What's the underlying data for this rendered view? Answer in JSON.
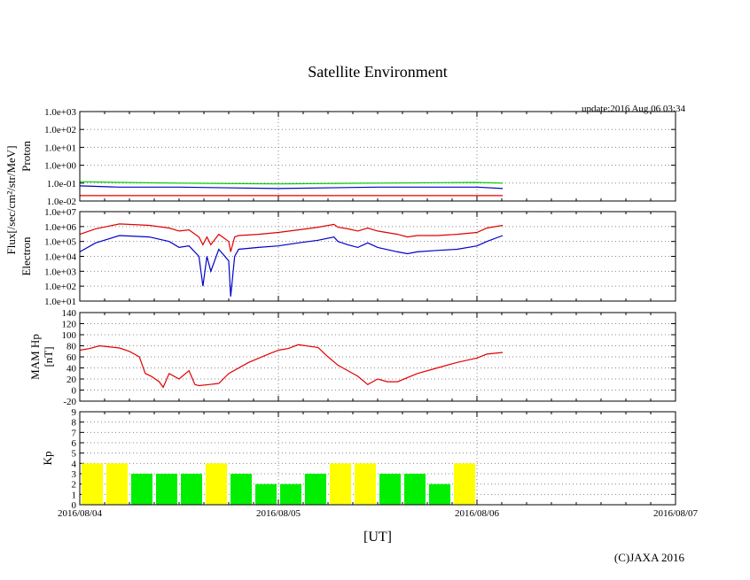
{
  "title": "Satellite Environment",
  "update": "update:2016 Aug 06 03:34",
  "copyright": "(C)JAXA 2016",
  "xlabel": "[UT]",
  "ylabel_flux": "Flux[/sec/cm²/str/MeV]",
  "x_ticks": [
    "2016/08/04",
    "2016/08/05",
    "2016/08/06",
    "2016/08/07"
  ],
  "colors": {
    "red": "#e00000",
    "blue": "#0000cc",
    "green": "#00cc00",
    "yellow": "#ffff00",
    "kp_green": "#00ee00"
  },
  "chart_data": [
    {
      "type": "line",
      "name": "proton",
      "ylabel": "Proton",
      "yscale": "log",
      "ylim": [
        0.01,
        1000
      ],
      "y_ticks": [
        "1.0e-02",
        "1.0e-01",
        "1.0e+00",
        "1.0e+01",
        "1.0e+02",
        "1.0e+03"
      ],
      "xlim_days": [
        0,
        3
      ],
      "series": [
        {
          "name": "green",
          "color": "#00cc00",
          "x": [
            0,
            0.2,
            0.5,
            1.0,
            1.5,
            2.0,
            2.13
          ],
          "values": [
            0.12,
            0.11,
            0.1,
            0.09,
            0.1,
            0.11,
            0.1
          ]
        },
        {
          "name": "blue",
          "color": "#0000cc",
          "x": [
            0,
            0.2,
            0.5,
            1.0,
            1.5,
            2.0,
            2.13
          ],
          "values": [
            0.07,
            0.06,
            0.06,
            0.05,
            0.06,
            0.06,
            0.05
          ]
        },
        {
          "name": "red",
          "color": "#e00000",
          "x": [
            0,
            0.5,
            1.0,
            1.5,
            2.0,
            2.13
          ],
          "values": [
            0.02,
            0.02,
            0.02,
            0.02,
            0.02,
            0.02
          ]
        }
      ]
    },
    {
      "type": "line",
      "name": "electron",
      "ylabel": "Electron",
      "yscale": "log",
      "ylim": [
        10,
        10000000
      ],
      "y_ticks": [
        "1.0e+01",
        "1.0e+02",
        "1.0e+03",
        "1.0e+04",
        "1.0e+05",
        "1.0e+06",
        "1.0e+07"
      ],
      "xlim_days": [
        0,
        3
      ],
      "series": [
        {
          "name": "red",
          "color": "#e00000",
          "x": [
            0,
            0.08,
            0.2,
            0.35,
            0.45,
            0.5,
            0.55,
            0.6,
            0.62,
            0.64,
            0.66,
            0.7,
            0.75,
            0.76,
            0.78,
            0.8,
            0.9,
            1.0,
            1.1,
            1.2,
            1.28,
            1.3,
            1.35,
            1.4,
            1.45,
            1.5,
            1.6,
            1.65,
            1.7,
            1.8,
            1.9,
            2.0,
            2.05,
            2.13
          ],
          "values": [
            300000,
            700000,
            1500000,
            1200000,
            800000,
            500000,
            600000,
            200000,
            60000,
            200000,
            60000,
            300000,
            100000,
            20000,
            200000,
            250000,
            300000,
            400000,
            600000,
            900000,
            1400000,
            900000,
            700000,
            500000,
            800000,
            500000,
            300000,
            200000,
            250000,
            250000,
            300000,
            400000,
            800000,
            1200000
          ]
        },
        {
          "name": "blue",
          "color": "#0000cc",
          "x": [
            0,
            0.08,
            0.2,
            0.35,
            0.45,
            0.5,
            0.55,
            0.6,
            0.62,
            0.64,
            0.66,
            0.7,
            0.75,
            0.76,
            0.78,
            0.8,
            0.9,
            1.0,
            1.1,
            1.2,
            1.28,
            1.3,
            1.35,
            1.4,
            1.45,
            1.5,
            1.6,
            1.65,
            1.7,
            1.8,
            1.9,
            2.0,
            2.05,
            2.13
          ],
          "values": [
            20000,
            80000,
            250000,
            200000,
            100000,
            40000,
            50000,
            10000,
            100,
            10000,
            1000,
            30000,
            5000,
            20,
            10000,
            30000,
            40000,
            50000,
            80000,
            120000,
            200000,
            100000,
            60000,
            40000,
            80000,
            40000,
            20000,
            15000,
            20000,
            25000,
            30000,
            50000,
            100000,
            250000
          ]
        }
      ]
    },
    {
      "type": "line",
      "name": "mam_hp",
      "ylabel": "MAM Hp [nT]",
      "ylabel_lines": [
        "MAM Hp",
        "[nT]"
      ],
      "ylim": [
        -20,
        140
      ],
      "y_ticks": [
        "-20",
        "0",
        "20",
        "40",
        "60",
        "80",
        "100",
        "120",
        "140"
      ],
      "xlim_days": [
        0,
        3
      ],
      "series": [
        {
          "name": "red",
          "color": "#e00000",
          "x": [
            0,
            0.05,
            0.1,
            0.2,
            0.25,
            0.3,
            0.33,
            0.36,
            0.4,
            0.42,
            0.45,
            0.5,
            0.55,
            0.58,
            0.6,
            0.65,
            0.7,
            0.75,
            0.85,
            0.95,
            1.0,
            1.05,
            1.1,
            1.2,
            1.25,
            1.3,
            1.35,
            1.4,
            1.45,
            1.5,
            1.55,
            1.6,
            1.7,
            1.8,
            1.9,
            2.0,
            2.05,
            2.13
          ],
          "values": [
            72,
            75,
            80,
            76,
            70,
            60,
            30,
            25,
            15,
            5,
            30,
            20,
            35,
            10,
            8,
            10,
            12,
            30,
            50,
            65,
            72,
            75,
            82,
            77,
            60,
            45,
            35,
            25,
            10,
            20,
            15,
            15,
            30,
            40,
            50,
            58,
            65,
            68
          ]
        }
      ]
    },
    {
      "type": "bar",
      "name": "kp",
      "ylabel": "Kp",
      "ylim": [
        0,
        9
      ],
      "y_ticks": [
        "0",
        "1",
        "2",
        "3",
        "4",
        "5",
        "6",
        "7",
        "8",
        "9"
      ],
      "xlim_days": [
        0,
        3
      ],
      "bar_interval_hours": 3,
      "values": [
        4,
        4,
        3,
        3,
        3,
        4,
        3,
        2,
        2,
        3,
        4,
        4,
        3,
        3,
        2,
        4
      ],
      "colors": [
        "yellow",
        "yellow",
        "green",
        "green",
        "green",
        "yellow",
        "green",
        "green",
        "green",
        "green",
        "yellow",
        "yellow",
        "green",
        "green",
        "green",
        "yellow"
      ]
    }
  ]
}
